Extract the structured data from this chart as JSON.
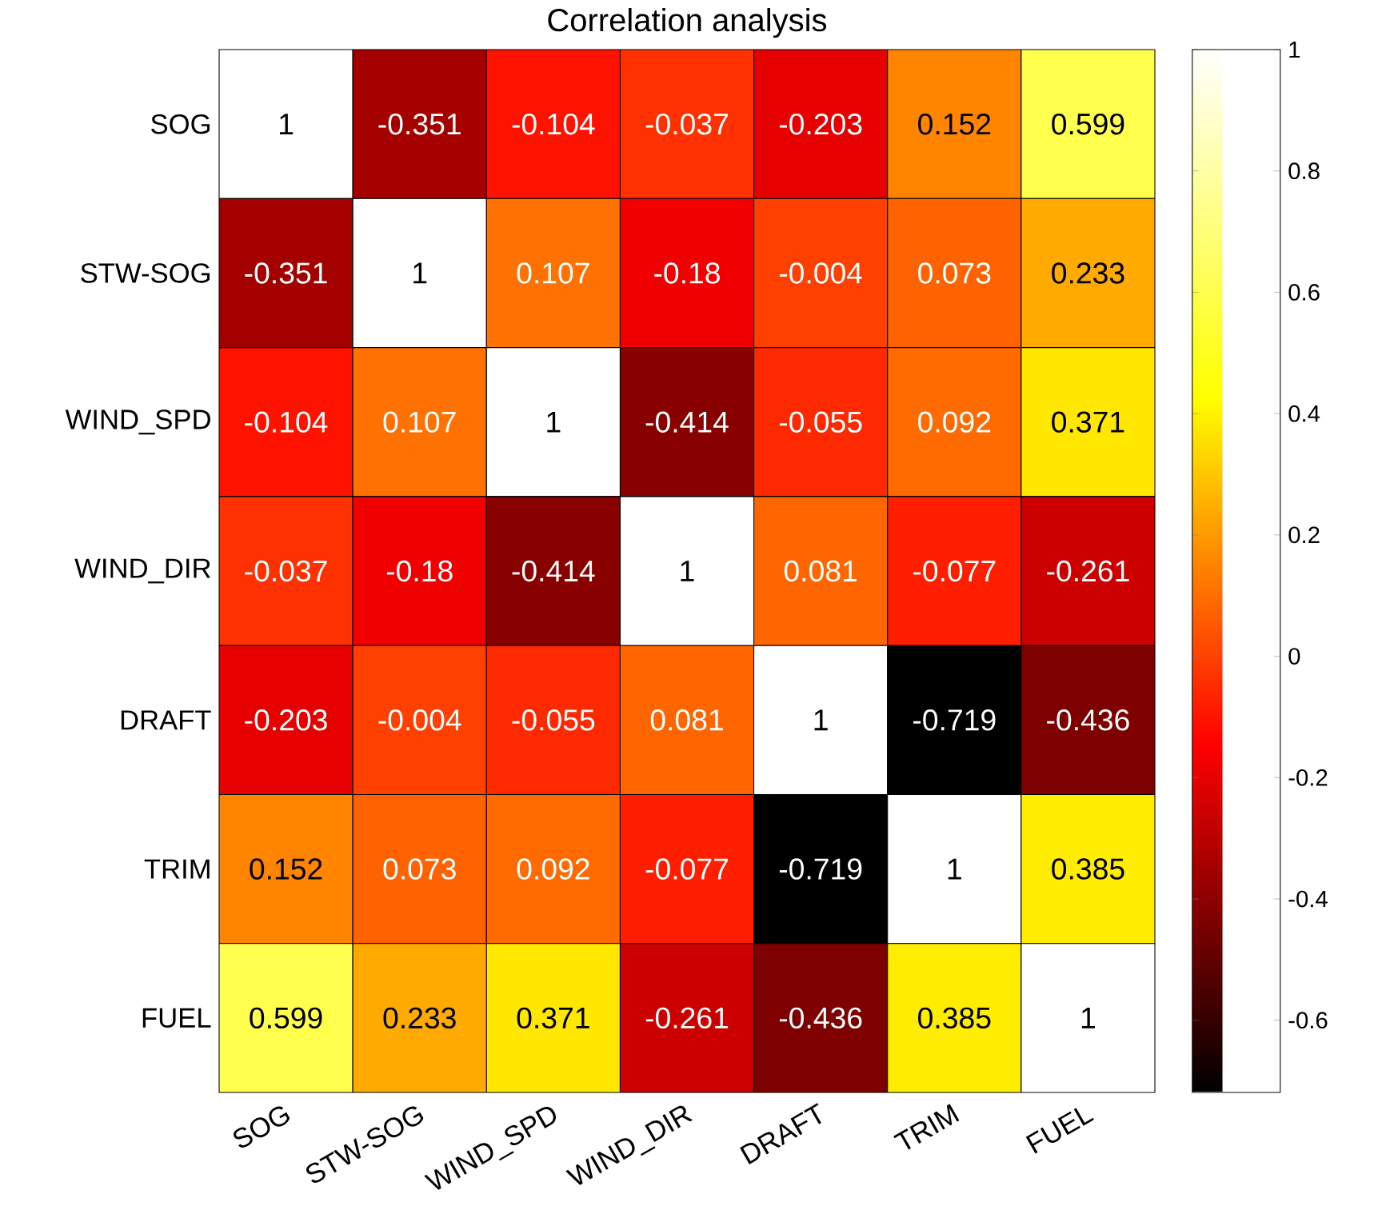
{
  "chart_data": {
    "type": "heatmap",
    "title": "Correlation analysis",
    "categories": [
      "SOG",
      "STW-SOG",
      "WIND_SPD",
      "WIND_DIR",
      "DRAFT",
      "TRIM",
      "FUEL"
    ],
    "y_categories": [
      "SOG",
      "STW-SOG",
      "WIND_SPD",
      "WIND_DIR",
      "DRAFT",
      "TRIM",
      "FUEL"
    ],
    "cells": [
      [
        1,
        -0.351,
        -0.104,
        -0.037,
        -0.203,
        0.152,
        0.599
      ],
      [
        -0.351,
        1,
        0.107,
        -0.18,
        -0.004,
        0.073,
        0.233
      ],
      [
        -0.104,
        0.107,
        1,
        -0.414,
        -0.055,
        0.092,
        0.371
      ],
      [
        -0.037,
        -0.18,
        -0.414,
        1,
        0.081,
        -0.077,
        -0.261
      ],
      [
        -0.203,
        -0.004,
        -0.055,
        0.081,
        1,
        -0.719,
        -0.436
      ],
      [
        0.152,
        0.073,
        0.092,
        -0.077,
        -0.719,
        1,
        0.385
      ],
      [
        0.599,
        0.233,
        0.371,
        -0.261,
        -0.436,
        0.385,
        1
      ]
    ],
    "data_labels": true,
    "clim": [
      -0.719,
      1
    ],
    "cticks": [
      -0.6,
      -0.4,
      -0.2,
      0,
      0.2,
      0.4,
      0.6,
      0.8,
      1
    ]
  }
}
